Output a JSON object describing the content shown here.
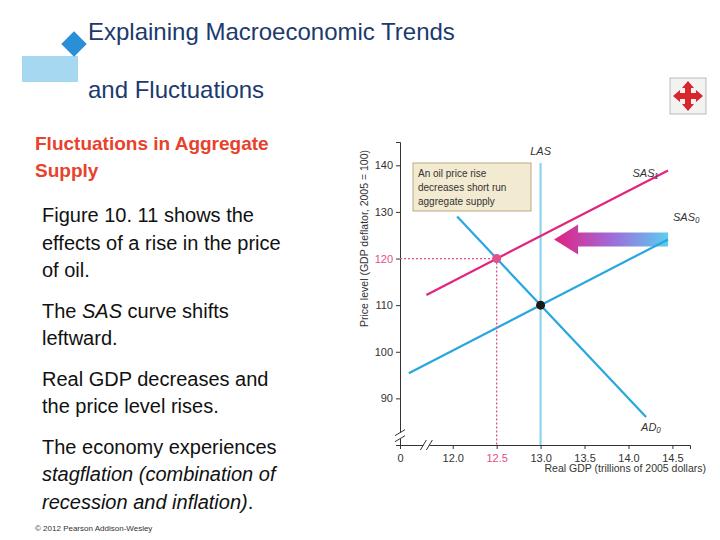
{
  "slide": {
    "title": [
      "Explaining Macroeconomic Trends",
      "and Fluctuations"
    ],
    "subtitle": [
      "Fluctuations in Aggregate",
      "Supply"
    ],
    "paragraphs": [
      [
        [
          "Figure 10. 11 shows the"
        ],
        [
          "effects of a rise in the price"
        ],
        [
          "of oil."
        ]
      ],
      [
        [
          "The ",
          {
            "text": "SAS",
            "italic": true
          },
          " curve shifts"
        ],
        [
          "leftward."
        ]
      ],
      [
        [
          "Real GDP decreases and"
        ],
        [
          "the price level rises."
        ]
      ],
      [
        [
          "The economy experiences"
        ],
        [
          {
            "text": "stagflation (combination of",
            "italic": true
          }
        ],
        [
          {
            "text": "recession and inflation)",
            "italic": true
          },
          "."
        ]
      ]
    ],
    "footer": "© 2012 Pearson Addison-Wesley"
  },
  "chart_data": {
    "type": "line",
    "x_label": "Real GDP (trillions of 2005 dollars)",
    "y_label": "Price level (GDP deflator, 2005 = 100)",
    "xlim": [
      0,
      14.7
    ],
    "xticks": [
      0,
      {
        "value": 12,
        "label": "12.0"
      },
      12.5,
      {
        "value": 13,
        "label": "13.0"
      },
      13.5,
      {
        "value": 14,
        "label": "14.0"
      },
      14.5
    ],
    "ylim": [
      80,
      145
    ],
    "yticks": [
      90,
      100,
      110,
      120,
      130,
      140
    ],
    "grid": false,
    "annotations": [
      {
        "text": [
          "An oil price rise",
          "decreases short run",
          "aggregate supply"
        ]
      }
    ],
    "series": [
      {
        "name": "LAS",
        "color": "#8fd3ee",
        "x": [
          13,
          13
        ],
        "values": [
          80,
          140.5
        ]
      },
      {
        "name": "SAS₁",
        "color": "#e2247f",
        "x": [
          11.7,
          14.45
        ],
        "values": [
          112.2,
          138.9
        ]
      },
      {
        "name": "SAS₀",
        "color": "#27a7df",
        "x": [
          11.5,
          14.45
        ],
        "values": [
          95.4,
          124.1
        ]
      },
      {
        "name": "AD₀",
        "color": "#27a7df",
        "x": [
          12.05,
          14.2
        ],
        "values": [
          129,
          86
        ]
      },
      {
        "type": "scatter",
        "color": "#e0508a",
        "marker": "circle",
        "line_style": "dotted",
        "x": [
          12.5
        ],
        "values": [
          120
        ]
      },
      {
        "type": "scatter",
        "color": "#1a1a1a",
        "marker": "circle",
        "x": [
          13
        ],
        "values": [
          110
        ]
      }
    ]
  }
}
